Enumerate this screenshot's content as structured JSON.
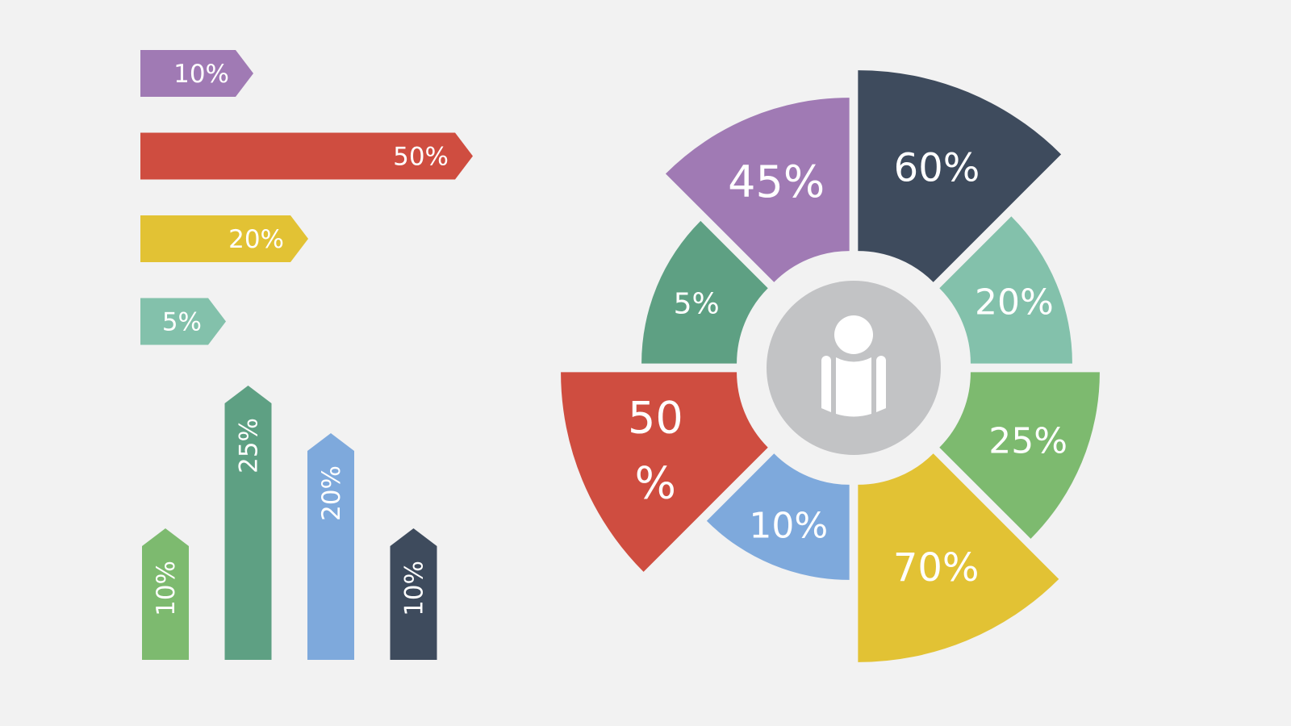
{
  "colors": {
    "background": "#f2f2f2",
    "purple": "#a07ab4",
    "red": "#cf4d40",
    "yellow": "#e2c234",
    "mint": "#83c1ab",
    "green": "#7dba6f",
    "teal": "#5ea083",
    "blue": "#7ea9dc",
    "navy": "#3e4b5d",
    "center": "#c2c3c5",
    "text": "#ffffff"
  },
  "chart_data": [
    {
      "type": "bar",
      "orientation": "horizontal",
      "categories": [
        "",
        "",
        "",
        ""
      ],
      "values": [
        10,
        50,
        20,
        5
      ],
      "labels": [
        "10%",
        "50%",
        "20%",
        "5%"
      ],
      "colors": [
        "purple",
        "red",
        "yellow",
        "mint"
      ]
    },
    {
      "type": "bar",
      "orientation": "vertical",
      "categories": [
        "",
        "",
        "",
        ""
      ],
      "values": [
        10,
        25,
        20,
        10
      ],
      "labels": [
        "10%",
        "25%",
        "20%",
        "10%"
      ],
      "colors": [
        "green",
        "teal",
        "blue",
        "navy"
      ]
    },
    {
      "type": "pie",
      "style": "exploded radial segments with center icon",
      "center_icon": "person-icon",
      "segments": [
        {
          "value": 60,
          "label_lines": [
            "60%"
          ],
          "color": "navy"
        },
        {
          "value": 20,
          "label_lines": [
            "20%"
          ],
          "color": "mint"
        },
        {
          "value": 25,
          "label_lines": [
            "25%"
          ],
          "color": "green"
        },
        {
          "value": 70,
          "label_lines": [
            "70%"
          ],
          "color": "yellow"
        },
        {
          "value": 10,
          "label_lines": [
            "10%"
          ],
          "color": "blue"
        },
        {
          "value": 50,
          "label_lines": [
            "50",
            "%"
          ],
          "color": "red"
        },
        {
          "value": 5,
          "label_lines": [
            "5%"
          ],
          "color": "teal"
        },
        {
          "value": 45,
          "label_lines": [
            "45%"
          ],
          "color": "purple"
        }
      ]
    }
  ]
}
